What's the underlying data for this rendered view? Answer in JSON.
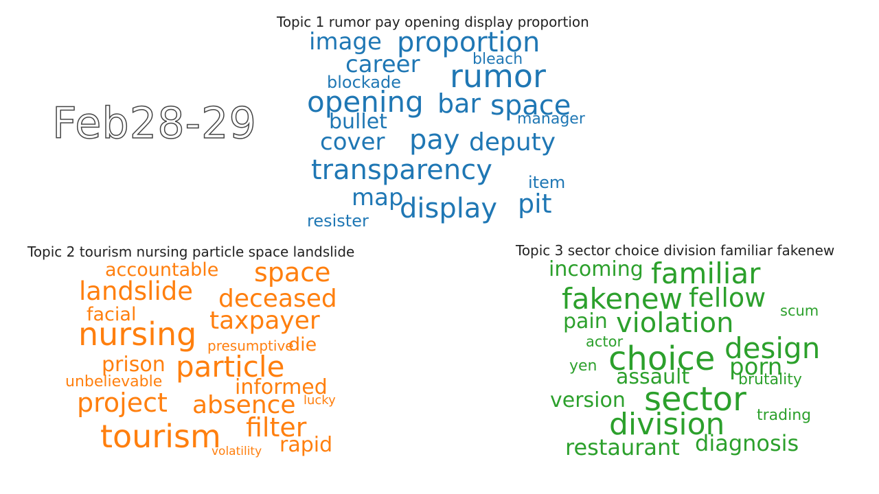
{
  "date_label": "Feb28-29",
  "topics": [
    {
      "title": "Topic 1 rumor pay opening display proportion",
      "color": "#1f77b4",
      "words": [
        "image",
        "proportion",
        "career",
        "bleach",
        "rumor",
        "blockade",
        "opening",
        "bar",
        "space",
        "bullet",
        "manager",
        "cover",
        "pay",
        "deputy",
        "transparency",
        "item",
        "map",
        "display",
        "pit",
        "resister"
      ]
    },
    {
      "title": "Topic 2 tourism nursing particle space landslide",
      "color": "#ff7f0e",
      "words": [
        "accountable",
        "space",
        "landslide",
        "deceased",
        "facial",
        "taxpayer",
        "nursing",
        "presumptive",
        "die",
        "prison",
        "particle",
        "unbelievable",
        "informed",
        "project",
        "absence",
        "lucky",
        "filter",
        "tourism",
        "rapid",
        "volatility"
      ]
    },
    {
      "title": "Topic 3 sector choice division familiar fakenew",
      "color": "#2ca02c",
      "words": [
        "incoming",
        "familiar",
        "fakenew",
        "fellow",
        "scum",
        "pain",
        "violation",
        "actor",
        "design",
        "choice",
        "yen",
        "porn",
        "assault",
        "brutality",
        "version",
        "sector",
        "division",
        "trading",
        "restaurant",
        "diagnosis"
      ]
    }
  ]
}
